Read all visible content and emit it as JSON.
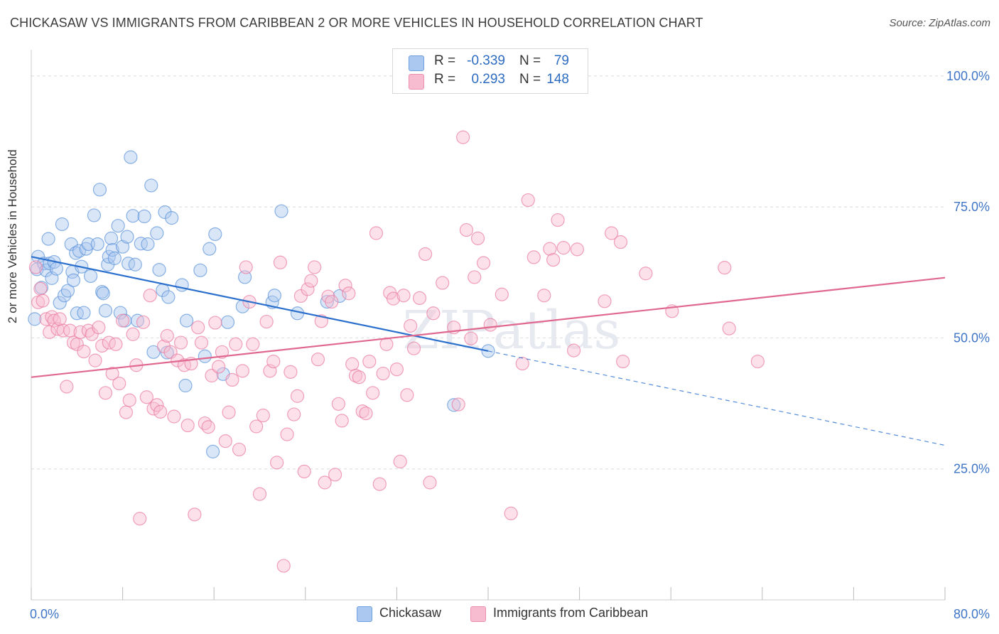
{
  "title": "CHICKASAW VS IMMIGRANTS FROM CARIBBEAN 2 OR MORE VEHICLES IN HOUSEHOLD CORRELATION CHART",
  "source": "Source: ZipAtlas.com",
  "watermark": "ZIPatlas",
  "stats": [
    {
      "r_label": "R =",
      "r": "-0.339",
      "n_label": "N =",
      "n": "79",
      "fill": "#aac8f0",
      "stroke": "#6f9fdc"
    },
    {
      "r_label": "R =",
      "r": "0.293",
      "n_label": "N =",
      "n": "148",
      "fill": "#f8bcd0",
      "stroke": "#ec8fae"
    }
  ],
  "legend": [
    {
      "label": "Chickasaw",
      "fill": "#aac8f0",
      "stroke": "#6f9fdc"
    },
    {
      "label": "Immigrants from Caribbean",
      "fill": "#f8bcd0",
      "stroke": "#ec8fae"
    }
  ],
  "chart_data": {
    "type": "scatter",
    "ylabel": "2 or more Vehicles in Household",
    "xlim": [
      0,
      80
    ],
    "ylim": [
      0,
      105
    ],
    "x_tick_labels": [
      {
        "v": 0,
        "t": "0.0%"
      },
      {
        "v": 80,
        "t": "80.0%"
      }
    ],
    "y_tick_labels": [
      {
        "v": 25,
        "t": "25.0%"
      },
      {
        "v": 50,
        "t": "50.0%"
      },
      {
        "v": 75,
        "t": "75.0%"
      },
      {
        "v": 100,
        "t": "100.0%"
      }
    ],
    "grid": true,
    "series": [
      {
        "name": "Chickasaw",
        "color": "#5b93d8",
        "fill": "#aac8f0",
        "trend": {
          "x0": 0,
          "y0": 65.5,
          "x1": 40,
          "y1": 47.5,
          "dash_to_x": 80,
          "dash_to_y": 29.5,
          "color": "#2b6fcc"
        },
        "points": [
          [
            0.3,
            53.6
          ],
          [
            0.5,
            63.1
          ],
          [
            0.6,
            65.5
          ],
          [
            0.9,
            59.6
          ],
          [
            1.1,
            64.2
          ],
          [
            1.3,
            62.9
          ],
          [
            1.5,
            68.9
          ],
          [
            1.6,
            64.2
          ],
          [
            1.8,
            61.4
          ],
          [
            2.0,
            64.5
          ],
          [
            2.2,
            63.2
          ],
          [
            2.5,
            56.7
          ],
          [
            2.7,
            71.7
          ],
          [
            2.9,
            58.1
          ],
          [
            3.2,
            59.0
          ],
          [
            3.5,
            67.9
          ],
          [
            3.6,
            62.6
          ],
          [
            3.7,
            61.0
          ],
          [
            3.9,
            66.2
          ],
          [
            4.0,
            54.7
          ],
          [
            4.2,
            66.6
          ],
          [
            4.4,
            63.6
          ],
          [
            4.6,
            54.8
          ],
          [
            4.8,
            67.0
          ],
          [
            5.0,
            67.9
          ],
          [
            5.2,
            61.8
          ],
          [
            5.5,
            73.4
          ],
          [
            5.8,
            67.9
          ],
          [
            6.0,
            78.3
          ],
          [
            6.2,
            58.8
          ],
          [
            6.3,
            58.5
          ],
          [
            6.5,
            55.2
          ],
          [
            6.7,
            64.0
          ],
          [
            6.8,
            65.5
          ],
          [
            7.0,
            69.0
          ],
          [
            7.1,
            66.8
          ],
          [
            7.3,
            65.2
          ],
          [
            7.6,
            71.4
          ],
          [
            7.8,
            54.8
          ],
          [
            8.0,
            67.4
          ],
          [
            8.2,
            53.3
          ],
          [
            8.4,
            69.3
          ],
          [
            8.5,
            64.2
          ],
          [
            8.7,
            84.5
          ],
          [
            8.9,
            73.3
          ],
          [
            9.1,
            64.0
          ],
          [
            9.3,
            53.3
          ],
          [
            9.6,
            68.0
          ],
          [
            9.9,
            73.2
          ],
          [
            10.2,
            67.9
          ],
          [
            10.5,
            79.1
          ],
          [
            10.7,
            47.3
          ],
          [
            11.0,
            70.0
          ],
          [
            11.2,
            63.0
          ],
          [
            11.5,
            59.1
          ],
          [
            11.7,
            74.0
          ],
          [
            11.9,
            47.2
          ],
          [
            12.0,
            57.8
          ],
          [
            12.3,
            72.9
          ],
          [
            13.2,
            60.1
          ],
          [
            13.5,
            40.9
          ],
          [
            13.6,
            53.3
          ],
          [
            14.8,
            62.9
          ],
          [
            15.2,
            46.5
          ],
          [
            15.6,
            67.0
          ],
          [
            15.9,
            28.3
          ],
          [
            16.1,
            69.8
          ],
          [
            16.8,
            43.1
          ],
          [
            17.2,
            53.0
          ],
          [
            18.5,
            56.0
          ],
          [
            18.7,
            61.6
          ],
          [
            21.1,
            56.8
          ],
          [
            21.3,
            58.1
          ],
          [
            21.9,
            74.2
          ],
          [
            23.3,
            54.7
          ],
          [
            25.9,
            56.9
          ],
          [
            27.0,
            58.0
          ],
          [
            37.0,
            37.2
          ],
          [
            40.0,
            47.5
          ]
        ]
      },
      {
        "name": "Immigrants from Caribbean",
        "color": "#e97aa0",
        "fill": "#f8bcd0",
        "trend": {
          "x0": 0,
          "y0": 42.5,
          "x1": 80,
          "y1": 61.5,
          "color": "#e0688f"
        },
        "points": [
          [
            0.4,
            63.5
          ],
          [
            0.6,
            56.8
          ],
          [
            0.8,
            59.4
          ],
          [
            1.0,
            57.1
          ],
          [
            1.3,
            53.6
          ],
          [
            1.6,
            51.1
          ],
          [
            1.8,
            54.0
          ],
          [
            2.0,
            53.3
          ],
          [
            2.3,
            51.7
          ],
          [
            2.5,
            53.6
          ],
          [
            2.8,
            51.4
          ],
          [
            3.1,
            40.7
          ],
          [
            3.4,
            51.4
          ],
          [
            3.7,
            49.1
          ],
          [
            4.0,
            48.8
          ],
          [
            4.3,
            51.1
          ],
          [
            4.6,
            47.4
          ],
          [
            5.0,
            51.4
          ],
          [
            5.3,
            50.7
          ],
          [
            5.6,
            45.7
          ],
          [
            5.9,
            52.0
          ],
          [
            6.2,
            48.5
          ],
          [
            6.5,
            39.5
          ],
          [
            6.8,
            49.1
          ],
          [
            7.1,
            43.2
          ],
          [
            7.4,
            48.8
          ],
          [
            7.7,
            41.3
          ],
          [
            8.0,
            53.3
          ],
          [
            8.3,
            35.8
          ],
          [
            8.6,
            38.1
          ],
          [
            8.9,
            50.7
          ],
          [
            9.2,
            44.8
          ],
          [
            9.5,
            15.5
          ],
          [
            9.8,
            53.0
          ],
          [
            10.1,
            38.7
          ],
          [
            10.4,
            58.1
          ],
          [
            10.7,
            36.5
          ],
          [
            11.0,
            37.2
          ],
          [
            11.3,
            35.9
          ],
          [
            11.6,
            48.4
          ],
          [
            11.9,
            50.4
          ],
          [
            12.2,
            47.3
          ],
          [
            12.5,
            35.0
          ],
          [
            12.8,
            45.7
          ],
          [
            13.1,
            49.1
          ],
          [
            13.4,
            44.8
          ],
          [
            13.7,
            33.3
          ],
          [
            14.0,
            45.1
          ],
          [
            14.3,
            16.3
          ],
          [
            14.6,
            52.0
          ],
          [
            14.9,
            49.1
          ],
          [
            15.2,
            33.7
          ],
          [
            15.5,
            33.0
          ],
          [
            15.8,
            42.8
          ],
          [
            16.1,
            52.9
          ],
          [
            16.4,
            44.5
          ],
          [
            16.7,
            47.3
          ],
          [
            17.0,
            30.3
          ],
          [
            17.3,
            35.8
          ],
          [
            17.6,
            42.0
          ],
          [
            17.9,
            48.8
          ],
          [
            18.2,
            28.7
          ],
          [
            18.5,
            43.7
          ],
          [
            18.8,
            63.5
          ],
          [
            19.1,
            56.9
          ],
          [
            19.4,
            48.8
          ],
          [
            19.7,
            33.1
          ],
          [
            20.0,
            20.2
          ],
          [
            20.3,
            35.2
          ],
          [
            20.6,
            53.1
          ],
          [
            20.9,
            43.7
          ],
          [
            21.2,
            45.5
          ],
          [
            21.5,
            26.2
          ],
          [
            21.8,
            64.4
          ],
          [
            22.1,
            6.5
          ],
          [
            22.4,
            31.6
          ],
          [
            22.7,
            43.5
          ],
          [
            23.0,
            35.4
          ],
          [
            23.3,
            38.9
          ],
          [
            23.6,
            58.0
          ],
          [
            23.9,
            24.5
          ],
          [
            24.2,
            59.3
          ],
          [
            24.5,
            60.9
          ],
          [
            24.8,
            63.5
          ],
          [
            25.1,
            45.9
          ],
          [
            25.4,
            53.2
          ],
          [
            25.7,
            22.4
          ],
          [
            26.0,
            57.9
          ],
          [
            26.3,
            56.9
          ],
          [
            26.6,
            23.9
          ],
          [
            26.9,
            37.4
          ],
          [
            27.2,
            34.2
          ],
          [
            27.5,
            60.0
          ],
          [
            27.8,
            58.5
          ],
          [
            28.1,
            45.0
          ],
          [
            28.4,
            42.8
          ],
          [
            28.7,
            42.5
          ],
          [
            29.0,
            36.0
          ],
          [
            29.3,
            35.6
          ],
          [
            29.6,
            45.5
          ],
          [
            29.9,
            39.5
          ],
          [
            30.2,
            70.0
          ],
          [
            30.5,
            22.1
          ],
          [
            30.8,
            43.2
          ],
          [
            31.1,
            48.8
          ],
          [
            31.4,
            58.6
          ],
          [
            31.7,
            57.5
          ],
          [
            32.0,
            44.0
          ],
          [
            32.3,
            26.4
          ],
          [
            32.6,
            58.1
          ],
          [
            32.9,
            39.1
          ],
          [
            33.2,
            52.3
          ],
          [
            33.5,
            48.0
          ],
          [
            34.0,
            57.6
          ],
          [
            34.5,
            66.0
          ],
          [
            34.9,
            22.4
          ],
          [
            35.2,
            54.7
          ],
          [
            36.0,
            60.5
          ],
          [
            37.0,
            52.0
          ],
          [
            37.4,
            37.3
          ],
          [
            37.8,
            88.3
          ],
          [
            38.1,
            70.6
          ],
          [
            38.5,
            49.9
          ],
          [
            38.8,
            61.6
          ],
          [
            39.1,
            69.0
          ],
          [
            39.6,
            64.3
          ],
          [
            40.2,
            52.5
          ],
          [
            41.2,
            58.3
          ],
          [
            42.0,
            16.5
          ],
          [
            43.0,
            45.1
          ],
          [
            43.5,
            76.3
          ],
          [
            44.0,
            65.4
          ],
          [
            44.9,
            58.1
          ],
          [
            45.4,
            67.0
          ],
          [
            45.7,
            64.9
          ],
          [
            46.1,
            72.5
          ],
          [
            46.6,
            67.2
          ],
          [
            47.5,
            47.6
          ],
          [
            47.8,
            66.9
          ],
          [
            50.2,
            57.0
          ],
          [
            50.8,
            70.0
          ],
          [
            51.6,
            68.3
          ],
          [
            51.8,
            45.5
          ],
          [
            53.8,
            62.3
          ],
          [
            56.1,
            55.1
          ],
          [
            60.7,
            63.4
          ],
          [
            61.1,
            51.8
          ],
          [
            63.6,
            45.5
          ]
        ]
      }
    ]
  }
}
